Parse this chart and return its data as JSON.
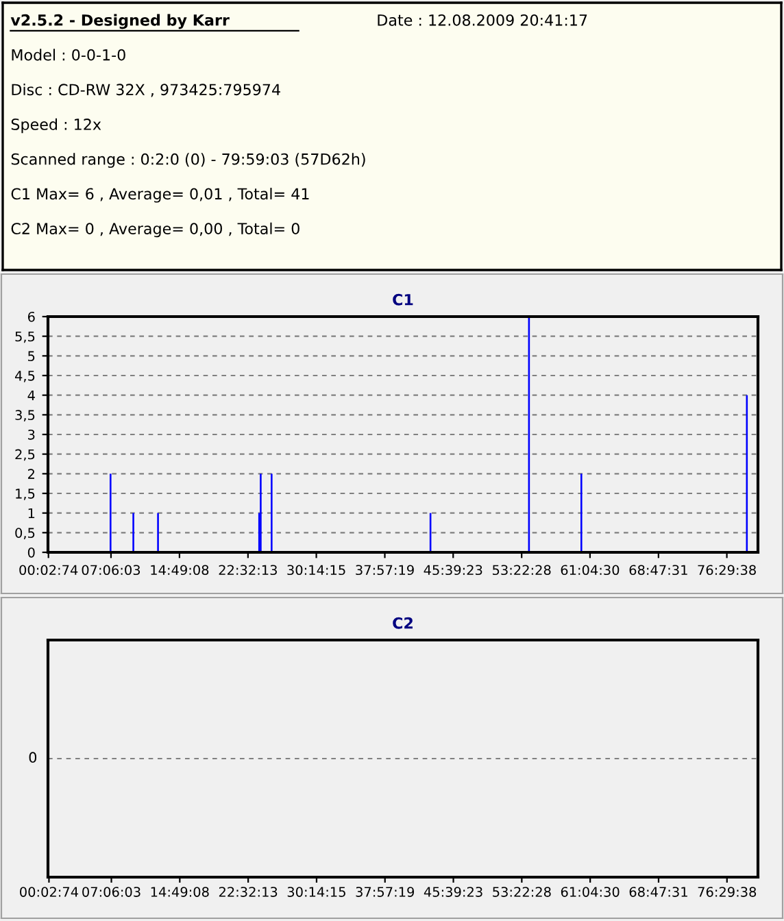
{
  "chart_data": [
    {
      "type": "other",
      "title": "v2.5.2 - Designed by Karr",
      "annotations": [
        "Date : 12.08.2009 20:41:17",
        "Model : 0-0-1-0",
        "Disc : CD-RW 32X , 973425:795974",
        "Speed : 12x",
        "Scanned range : 0:2:0 (0) - 79:59:03 (57D62h)",
        "C1 Max= 6 , Average= 0,01 , Total= 41",
        "C2 Max= 0 , Average= 0,00 , Total= 0"
      ]
    },
    {
      "type": "bar",
      "title": "C1",
      "x": [
        7.05,
        9.62,
        12.4,
        23.8,
        23.97,
        25.2,
        43.1,
        54.2,
        60.1,
        78.75
      ],
      "values": [
        2,
        1,
        1,
        1,
        2,
        2,
        1,
        6,
        2,
        4
      ],
      "color": "#0000ff",
      "xlim": [
        0,
        80
      ],
      "xticks": [
        {
          "value": 0.0539,
          "label": "00:02:74"
        },
        {
          "value": 7.1008,
          "label": "07:06:03"
        },
        {
          "value": 14.8189,
          "label": "14:49:08"
        },
        {
          "value": 22.5369,
          "label": "22:32:13"
        },
        {
          "value": 30.2375,
          "label": "30:14:15"
        },
        {
          "value": 37.9553,
          "label": "37:57:19"
        },
        {
          "value": 45.6564,
          "label": "45:39:23"
        },
        {
          "value": 53.3744,
          "label": "53:22:28"
        },
        {
          "value": 61.075,
          "label": "61:04:30"
        },
        {
          "value": 68.7919,
          "label": "68:47:31"
        },
        {
          "value": 76.4939,
          "label": "76:29:38"
        }
      ],
      "ylim": [
        0,
        6
      ],
      "yticks": [
        0,
        {
          "value": 0.5,
          "label": "0,5"
        },
        1,
        {
          "value": 1.5,
          "label": "1,5"
        },
        2,
        {
          "value": 2.5,
          "label": "2,5"
        },
        3,
        {
          "value": 3.5,
          "label": "3,5"
        },
        4,
        {
          "value": 4.5,
          "label": "4,5"
        },
        5,
        {
          "value": 5.5,
          "label": "5,5"
        },
        6
      ],
      "grid": "y"
    },
    {
      "type": "other",
      "title": "C2",
      "annotations": [
        "0",
        "00:02:74",
        "07:06:03",
        "14:49:08",
        "22:32:13",
        "30:14:15",
        "37:57:19",
        "45:39:23",
        "53:22:28",
        "61:04:30",
        "68:47:31",
        "76:29:38"
      ]
    }
  ]
}
